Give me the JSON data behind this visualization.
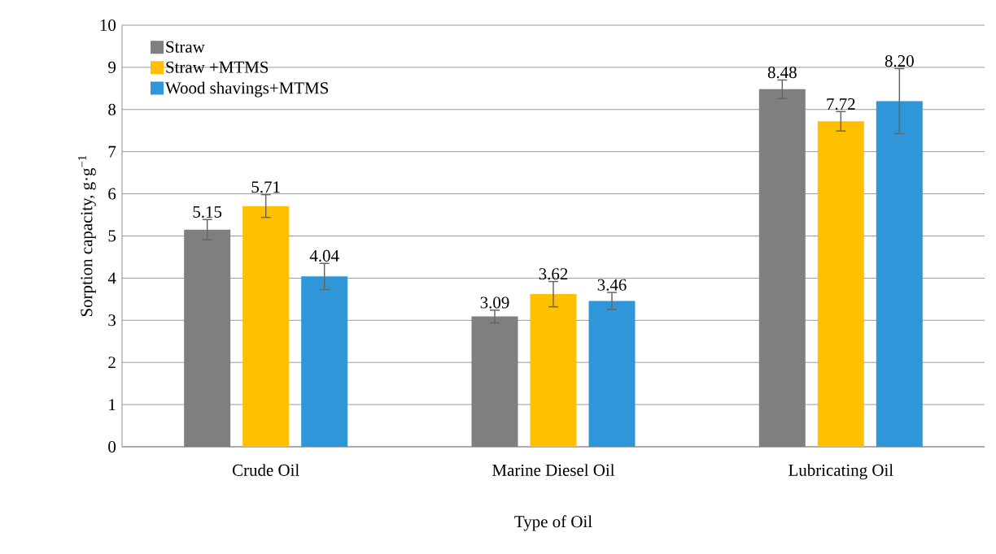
{
  "chart_data": {
    "type": "bar",
    "xlabel": "Type of Oil",
    "ylabel": "Sorption capacity, g·g$^{−1}$",
    "categories": [
      "Crude Oil",
      "Marine Diesel Oil",
      "Lubricating Oil"
    ],
    "series": [
      {
        "name": "Straw",
        "color": "#7f7f7f",
        "values": [
          5.15,
          3.09,
          8.48
        ],
        "errors": [
          0.24,
          0.15,
          0.22
        ],
        "value_labels": [
          "5.15",
          "3.09",
          "8.48"
        ]
      },
      {
        "name": "Straw +MTMS",
        "color": "#ffc000",
        "values": [
          5.71,
          3.62,
          7.72
        ],
        "errors": [
          0.27,
          0.3,
          0.23
        ],
        "value_labels": [
          "5.71",
          "3.62",
          "7.72"
        ]
      },
      {
        "name": "Wood shavings+MTMS",
        "color": "#2e96d9",
        "values": [
          4.04,
          3.46,
          8.2
        ],
        "errors": [
          0.31,
          0.2,
          0.77
        ],
        "value_labels": [
          "4.04",
          "3.46",
          "8.20"
        ]
      }
    ],
    "ylim": [
      0,
      10
    ],
    "yticks": [
      0,
      1,
      2,
      3,
      4,
      5,
      6,
      7,
      8,
      9,
      10
    ],
    "grid": "y",
    "legend": "top left"
  }
}
